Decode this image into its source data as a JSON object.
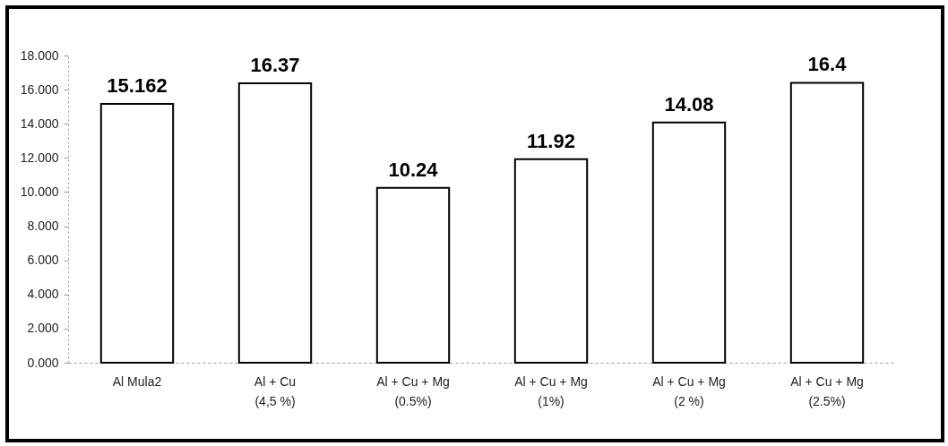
{
  "chart_data": {
    "type": "bar",
    "categories": [
      "Al Mula2",
      "Al + Cu\n(4,5 %)",
      "Al + Cu + Mg\n(0.5%)",
      "Al + Cu + Mg\n(1%)",
      "Al + Cu + Mg\n(2 %)",
      "Al + Cu + Mg\n(2.5%)"
    ],
    "values": [
      15.162,
      16.37,
      10.24,
      11.92,
      14.08,
      16.4
    ],
    "color": "#ffffff",
    "ylim": [
      0,
      18
    ],
    "yticks": [
      {
        "value": 0,
        "label": "0.000"
      },
      {
        "value": 2,
        "label": "2.000"
      },
      {
        "value": 4,
        "label": "4.000"
      },
      {
        "value": 6,
        "label": "6.000"
      },
      {
        "value": 8,
        "label": "8.000"
      },
      {
        "value": 10,
        "label": "10.000"
      },
      {
        "value": 12,
        "label": "12.000"
      },
      {
        "value": 14,
        "label": "14.000"
      },
      {
        "value": 16,
        "label": "16.000"
      },
      {
        "value": 18,
        "label": "18.000"
      }
    ],
    "data_labels": true,
    "grid": false
  }
}
